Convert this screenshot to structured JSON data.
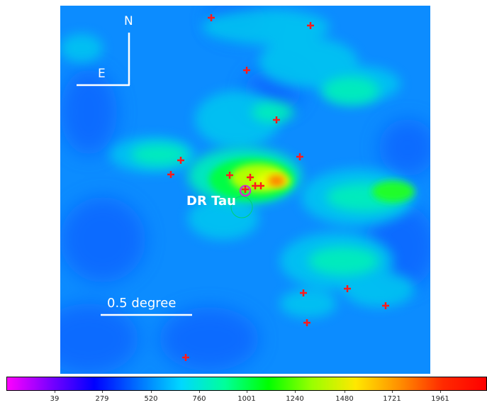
{
  "image": {
    "title_label": "DR Tau",
    "scale_label": "0.5 degree",
    "compass": {
      "north": "N",
      "east": "E"
    }
  },
  "colorbar": {
    "ticks": [
      "39",
      "279",
      "520",
      "760",
      "1001",
      "1240",
      "1480",
      "1721",
      "1961"
    ],
    "colors": [
      "#ff00ff",
      "#7a00ff",
      "#0000ff",
      "#0070ff",
      "#00d8ff",
      "#00ff9a",
      "#00ff00",
      "#9aff00",
      "#ffe800",
      "#ff9000",
      "#ff2a00",
      "#ff0000"
    ]
  },
  "map_colors": {
    "background": "#0c8cff",
    "deep": "#1060ff",
    "cyan": "#00e0e8",
    "teal": "#00f0b8",
    "green": "#00ff40",
    "yellow": "#e8ff00",
    "orange": "#ff8000",
    "marker": "#ff1a1a",
    "ring": "#cc33cc"
  }
}
